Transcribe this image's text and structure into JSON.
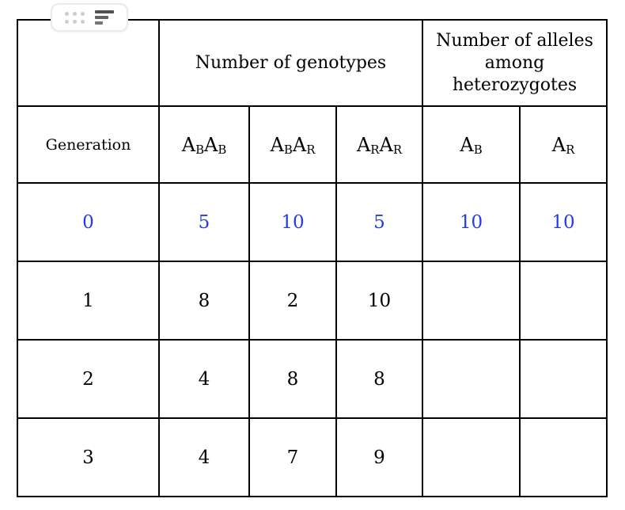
{
  "toolbar": {
    "drag_handle_icon": "six-dot-grid",
    "details_icon": "left-aligned-bars"
  },
  "table": {
    "group_headers": {
      "blank": "",
      "genotypes": "Number of genotypes",
      "alleles": "Number of alleles among heterozygotes"
    },
    "columns": {
      "generation": "Generation",
      "g1": {
        "p1": "A",
        "s1": "B",
        "p2": "A",
        "s2": "B"
      },
      "g2": {
        "p1": "A",
        "s1": "B",
        "p2": "A",
        "s2": "R"
      },
      "g3": {
        "p1": "A",
        "s1": "R",
        "p2": "A",
        "s2": "R"
      },
      "a1": {
        "p1": "A",
        "s1": "B"
      },
      "a2": {
        "p1": "A",
        "s1": "R"
      }
    },
    "rows": [
      {
        "cells": [
          "0",
          "5",
          "10",
          "5",
          "10",
          "10"
        ],
        "highlighted": true
      },
      {
        "cells": [
          "1",
          "8",
          "2",
          "10",
          "",
          ""
        ],
        "highlighted": false
      },
      {
        "cells": [
          "2",
          "4",
          "8",
          "8",
          "",
          ""
        ],
        "highlighted": false
      },
      {
        "cells": [
          "3",
          "4",
          "7",
          "9",
          "",
          ""
        ],
        "highlighted": false
      }
    ]
  },
  "colors": {
    "highlight_text": "#233ce6",
    "grid_line": "#000000",
    "toolbar_border": "#e8eaed"
  }
}
